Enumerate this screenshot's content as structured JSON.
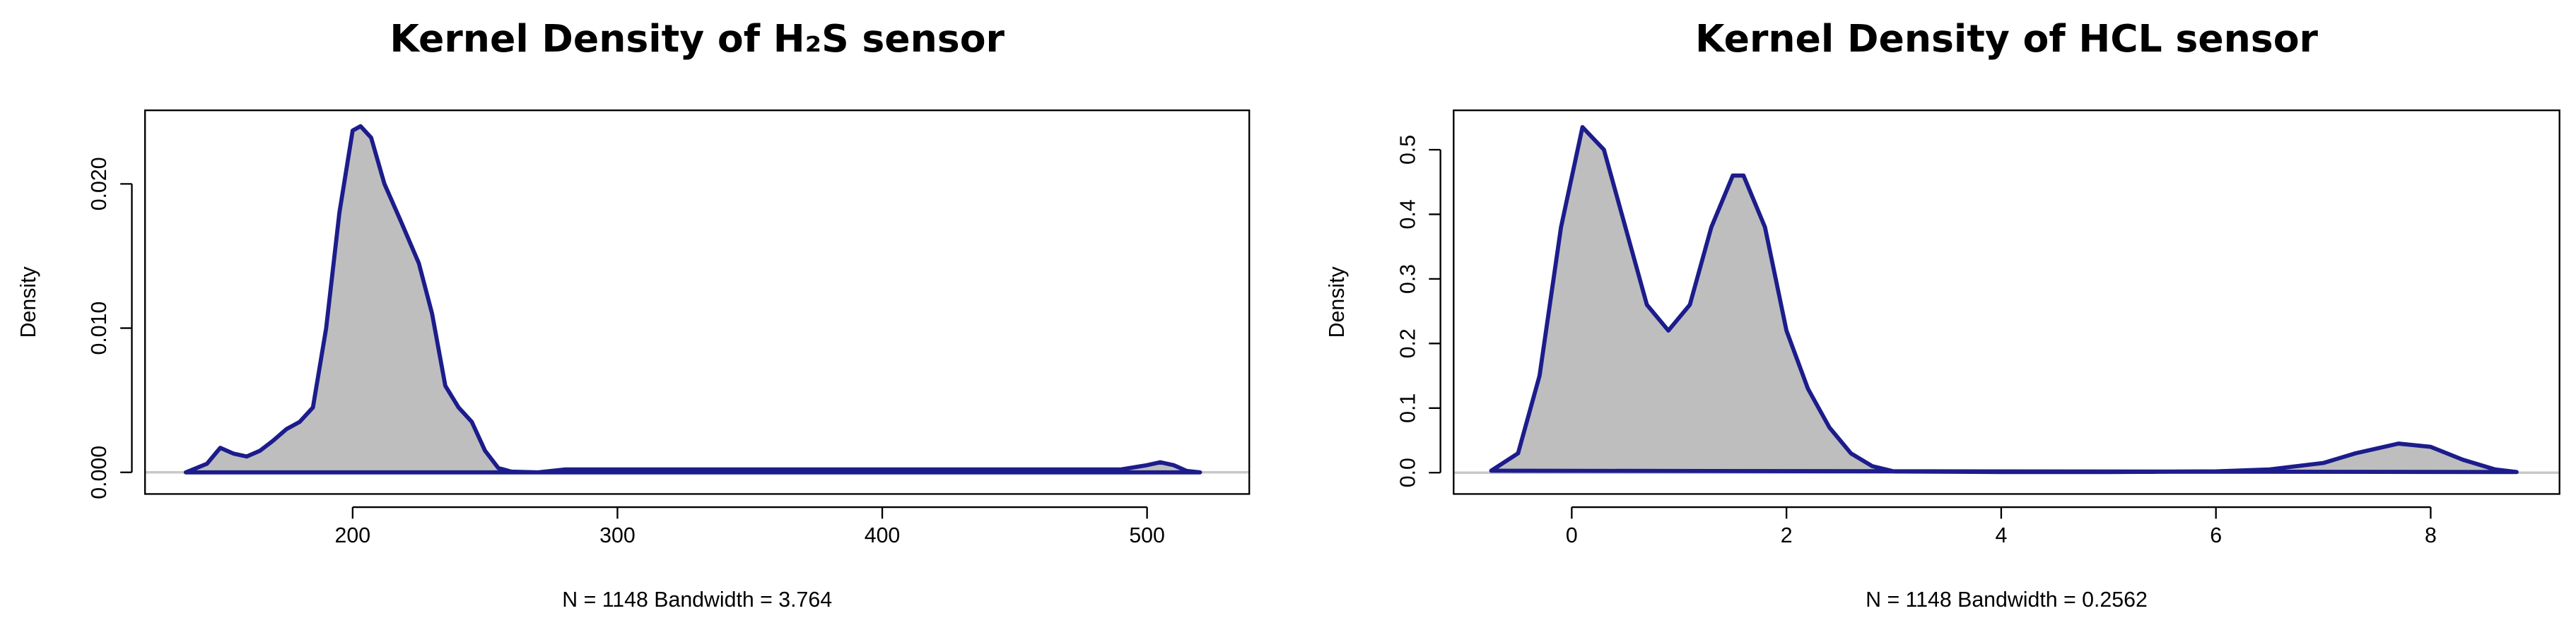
{
  "chart_data": [
    {
      "type": "area",
      "title": "Kernel Density of H₂S sensor",
      "x_label": "N = 1148   Bandwidth = 3.764",
      "y_label": "Density",
      "color": "#1c1c8c",
      "fill_color": "#bebebe",
      "x": [
        137,
        145,
        150,
        155,
        160,
        165,
        170,
        175,
        180,
        185,
        190,
        195,
        200,
        203,
        207,
        212,
        218,
        225,
        230,
        235,
        240,
        245,
        250,
        255,
        260,
        270,
        280,
        300,
        350,
        400,
        450,
        490,
        500,
        505,
        510,
        515,
        520
      ],
      "y": [
        0,
        0.0006,
        0.0017,
        0.0013,
        0.0011,
        0.0015,
        0.0022,
        0.003,
        0.0035,
        0.0045,
        0.01,
        0.018,
        0.0237,
        0.024,
        0.0232,
        0.02,
        0.0175,
        0.0145,
        0.011,
        0.006,
        0.0045,
        0.0035,
        0.0015,
        0.0003,
        5e-05,
        0,
        0.0002,
        0.0002,
        0.0002,
        0.0002,
        0.0002,
        0.0002,
        0.0005,
        0.0007,
        0.0005,
        0.0001,
        0
      ],
      "xlim": [
        121.6,
        538.6
      ],
      "ylim": [
        -0.0015,
        0.0251
      ],
      "xticks": [
        200,
        300,
        400,
        500
      ],
      "yticks": [
        {
          "value": 0,
          "label": "0.000"
        },
        {
          "value": 0.01,
          "label": "0.010"
        },
        {
          "value": 0.02,
          "label": "0.020"
        }
      ]
    },
    {
      "type": "area",
      "title": "Kernel Density of HCL sensor",
      "x_label": "N = 1148   Bandwidth = 0.2562",
      "y_label": "Density",
      "color": "#1c1c8c",
      "fill_color": "#bebebe",
      "x": [
        -0.75,
        -0.5,
        -0.3,
        -0.1,
        0.1,
        0.3,
        0.5,
        0.7,
        0.9,
        1.1,
        1.3,
        1.5,
        1.6,
        1.8,
        2.0,
        2.2,
        2.4,
        2.6,
        2.8,
        3.0,
        4,
        5,
        6,
        6.5,
        7,
        7.3,
        7.7,
        8,
        8.3,
        8.6,
        8.8
      ],
      "y": [
        0.003,
        0.03,
        0.15,
        0.38,
        0.535,
        0.5,
        0.38,
        0.26,
        0.22,
        0.26,
        0.38,
        0.46,
        0.46,
        0.38,
        0.22,
        0.13,
        0.07,
        0.03,
        0.01,
        0.002,
        0.001,
        0.001,
        0.002,
        0.005,
        0.015,
        0.03,
        0.045,
        0.04,
        0.02,
        0.005,
        0.001
      ],
      "xlim": [
        -1.1,
        9.2
      ],
      "ylim": [
        -0.033,
        0.561
      ],
      "xticks": [
        0,
        2,
        4,
        6,
        8
      ],
      "yticks": [
        {
          "value": 0,
          "label": "0.0"
        },
        0.1,
        0.2,
        0.3,
        0.4,
        0.5
      ]
    }
  ]
}
